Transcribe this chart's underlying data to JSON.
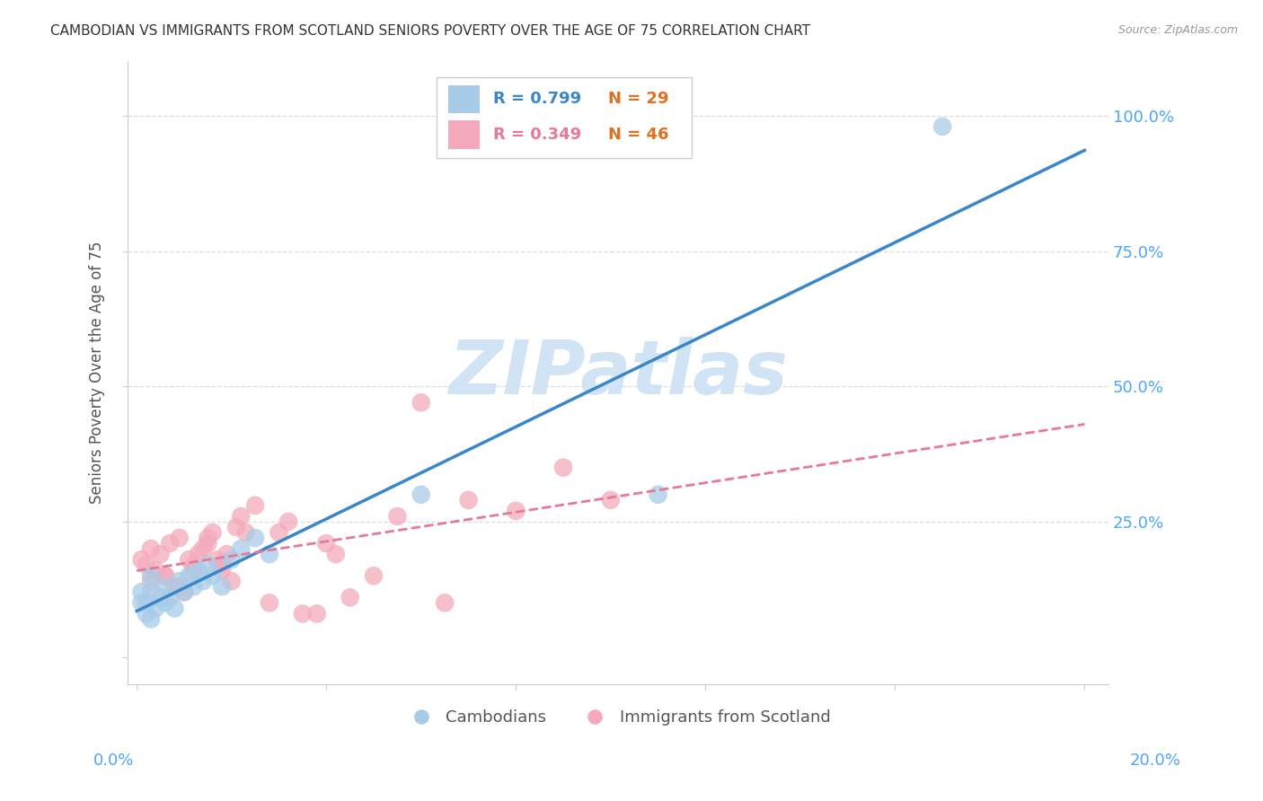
{
  "title": "CAMBODIAN VS IMMIGRANTS FROM SCOTLAND SENIORS POVERTY OVER THE AGE OF 75 CORRELATION CHART",
  "source": "Source: ZipAtlas.com",
  "ylabel": "Seniors Poverty Over the Age of 75",
  "watermark": "ZIPatlas",
  "R_blue": "R = 0.799",
  "N_blue": "N = 29",
  "R_pink": "R = 0.349",
  "N_pink": "N = 46",
  "label_blue": "Cambodians",
  "label_pink": "Immigrants from Scotland",
  "blue_scatter": "#a8cce8",
  "pink_scatter": "#f4aabc",
  "blue_line": "#3a86c8",
  "pink_line": "#e87898",
  "r_text_color_blue": "#3a86c8",
  "r_text_color_pink": "#e87898",
  "n_text_color": "#e07020",
  "axis_tick_color": "#4da6ff",
  "ylabel_color": "#555555",
  "title_color": "#333333",
  "source_color": "#999999",
  "watermark_color": "#d0e4f5",
  "grid_color": "#dddddd",
  "legend_border_color": "#cccccc",
  "xlim": [
    -0.002,
    0.205
  ],
  "ylim": [
    -0.05,
    1.1
  ],
  "ytick_pos": [
    0.0,
    0.25,
    0.5,
    0.75,
    1.0
  ],
  "ytick_labels_right": [
    "",
    "25.0%",
    "50.0%",
    "75.0%",
    "100.0%"
  ],
  "xtick_pos": [
    0.0,
    0.04,
    0.08,
    0.12,
    0.16,
    0.2
  ],
  "cam_x": [
    0.001,
    0.002,
    0.003,
    0.003,
    0.004,
    0.005,
    0.006,
    0.006,
    0.007,
    0.008,
    0.009,
    0.01,
    0.011,
    0.012,
    0.013,
    0.014,
    0.015,
    0.016,
    0.018,
    0.02,
    0.022,
    0.025,
    0.028,
    0.003,
    0.001,
    0.06,
    0.11,
    0.002,
    0.17
  ],
  "cam_y": [
    0.1,
    0.08,
    0.12,
    0.07,
    0.09,
    0.11,
    0.1,
    0.13,
    0.11,
    0.09,
    0.14,
    0.12,
    0.15,
    0.13,
    0.16,
    0.14,
    0.17,
    0.15,
    0.13,
    0.18,
    0.2,
    0.22,
    0.19,
    0.15,
    0.12,
    0.3,
    0.3,
    0.1,
    0.98
  ],
  "scot_x": [
    0.001,
    0.002,
    0.003,
    0.004,
    0.005,
    0.006,
    0.007,
    0.008,
    0.009,
    0.01,
    0.011,
    0.012,
    0.013,
    0.014,
    0.015,
    0.016,
    0.017,
    0.018,
    0.019,
    0.02,
    0.021,
    0.022,
    0.023,
    0.025,
    0.028,
    0.03,
    0.032,
    0.035,
    0.038,
    0.04,
    0.042,
    0.045,
    0.05,
    0.055,
    0.06,
    0.065,
    0.07,
    0.08,
    0.09,
    0.1,
    0.003,
    0.006,
    0.009,
    0.012,
    0.015,
    0.018
  ],
  "scot_y": [
    0.18,
    0.17,
    0.2,
    0.16,
    0.19,
    0.15,
    0.21,
    0.13,
    0.22,
    0.12,
    0.18,
    0.16,
    0.19,
    0.2,
    0.21,
    0.23,
    0.18,
    0.16,
    0.19,
    0.14,
    0.24,
    0.26,
    0.23,
    0.28,
    0.1,
    0.23,
    0.25,
    0.08,
    0.08,
    0.21,
    0.19,
    0.11,
    0.15,
    0.26,
    0.47,
    0.1,
    0.29,
    0.27,
    0.35,
    0.29,
    0.14,
    0.15,
    0.13,
    0.17,
    0.22,
    0.17
  ]
}
